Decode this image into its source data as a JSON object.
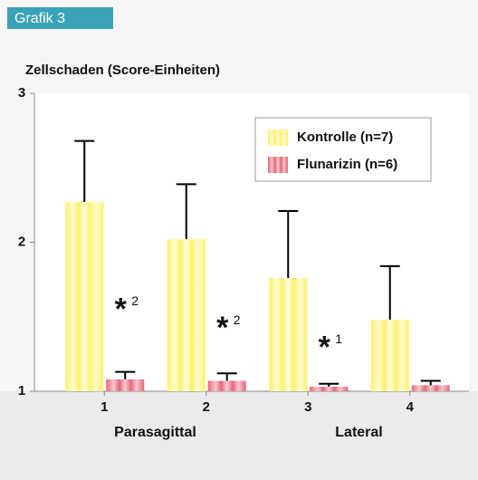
{
  "chart_data": {
    "type": "bar",
    "header": "Grafik 3",
    "y_label": "Zellschaden (Score-Einheiten)",
    "categories": [
      "1",
      "2",
      "3",
      "4"
    ],
    "groups": [
      "Parasagittal",
      "Lateral"
    ],
    "series": [
      {
        "name": "Kontrolle (n=7)",
        "color": "#fff06a",
        "values": [
          2.27,
          2.02,
          1.76,
          1.48
        ],
        "errors": [
          0.41,
          0.37,
          0.45,
          0.36
        ]
      },
      {
        "name": "Flunarizin (n=6)",
        "color": "#e5677a",
        "values": [
          1.08,
          1.07,
          1.03,
          1.04
        ],
        "errors": [
          0.05,
          0.05,
          0.02,
          0.03
        ]
      }
    ],
    "annotations": [
      {
        "symbol": "*",
        "superscript": "2"
      },
      {
        "symbol": "*",
        "superscript": "2"
      },
      {
        "symbol": "*",
        "superscript": "1"
      }
    ],
    "ylim": [
      1,
      3
    ],
    "yticks": [
      1,
      2,
      3
    ]
  }
}
